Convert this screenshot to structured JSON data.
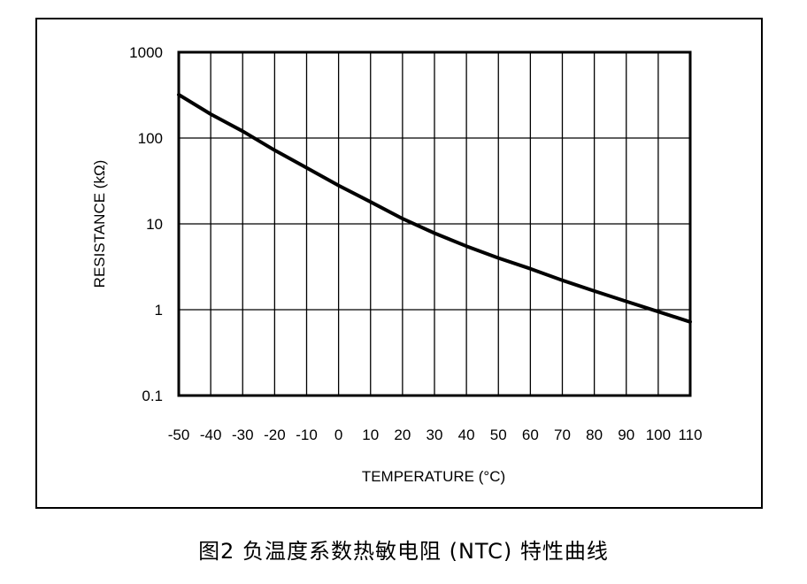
{
  "chart_data": {
    "type": "line",
    "title": "",
    "xlabel": "TEMPERATURE (°C)",
    "ylabel": "RESISTANCE (kΩ)",
    "x_ticks": [
      "-50",
      "-40",
      "-30",
      "-20",
      "-10",
      "0",
      "10",
      "20",
      "30",
      "40",
      "50",
      "60",
      "70",
      "80",
      "90",
      "100",
      "110"
    ],
    "y_ticks": [
      "0.1",
      "1",
      "10",
      "100",
      "1000"
    ],
    "xlim": [
      -50,
      110
    ],
    "ylim": [
      0.1,
      1000
    ],
    "y_scale": "log",
    "grid": true,
    "series": [
      {
        "x": [
          -50,
          -40,
          -30,
          -20,
          -10,
          0,
          10,
          20,
          30,
          40,
          50,
          60,
          70,
          80,
          90,
          100,
          110
        ],
        "y": [
          320,
          190,
          120,
          72,
          45,
          28,
          18,
          11.5,
          7.8,
          5.5,
          4,
          3,
          2.2,
          1.65,
          1.25,
          0.95,
          0.72
        ]
      }
    ]
  },
  "caption": "图2 负温度系数热敏电阻 (NTC) 特性曲线"
}
